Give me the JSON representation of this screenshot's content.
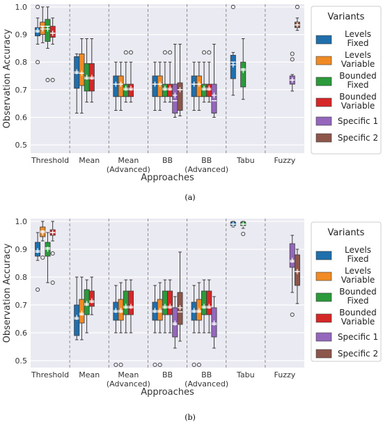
{
  "figure": {
    "panels": [
      {
        "caption": "(a)",
        "chart_data": {
          "type": "box",
          "xlabel": "Approaches",
          "ylabel": "Observation Accuracy",
          "ylim": [
            0.47,
            1.01
          ],
          "yticks": [
            0.5,
            0.6,
            0.7,
            0.8,
            0.9,
            1.0
          ],
          "categories": [
            "Threshold",
            "Mean",
            "Mean\n(Advanced)",
            "BB",
            "BB\n(Advanced)",
            "Tabu",
            "Fuzzy"
          ],
          "grid": true,
          "legend_position": "right",
          "legend_title": "Variants",
          "series": [
            {
              "name": "Levels\nFixed",
              "color": "#1f6fad"
            },
            {
              "name": "Levels\nVariable",
              "color": "#f08a24"
            },
            {
              "name": "Bounded\nFixed",
              "color": "#2a9a3a"
            },
            {
              "name": "Bounded\nVariable",
              "color": "#d62728"
            },
            {
              "name": "Specific 1",
              "color": "#9467bd"
            },
            {
              "name": "Specific 2",
              "color": "#8c564b"
            }
          ],
          "boxes": [
            {
              "cat": 0,
              "s": 0,
              "q1": 0.895,
              "med": 0.91,
              "q3": 0.925,
              "lo": 0.865,
              "hi": 0.96,
              "mean": 0.915,
              "out": [
                1.0,
                0.8
              ]
            },
            {
              "cat": 0,
              "s": 1,
              "q1": 0.9,
              "med": 0.93,
              "q3": 0.945,
              "lo": 0.87,
              "hi": 1.0,
              "mean": 0.92,
              "out": []
            },
            {
              "cat": 0,
              "s": 2,
              "q1": 0.875,
              "med": 0.93,
              "q3": 0.955,
              "lo": 0.85,
              "hi": 1.0,
              "mean": 0.92,
              "out": [
                0.735
              ]
            },
            {
              "cat": 0,
              "s": 3,
              "q1": 0.89,
              "med": 0.905,
              "q3": 0.93,
              "lo": 0.865,
              "hi": 0.96,
              "mean": 0.905,
              "out": [
                0.735
              ]
            },
            {
              "cat": 1,
              "s": 0,
              "q1": 0.705,
              "med": 0.76,
              "q3": 0.82,
              "lo": 0.615,
              "hi": 0.83,
              "mean": 0.765,
              "out": []
            },
            {
              "cat": 1,
              "s": 1,
              "q1": 0.715,
              "med": 0.76,
              "q3": 0.83,
              "lo": 0.615,
              "hi": 0.885,
              "mean": 0.76,
              "out": []
            },
            {
              "cat": 1,
              "s": 2,
              "q1": 0.695,
              "med": 0.74,
              "q3": 0.795,
              "lo": 0.655,
              "hi": 0.885,
              "mean": 0.745,
              "out": []
            },
            {
              "cat": 1,
              "s": 3,
              "q1": 0.695,
              "med": 0.74,
              "q3": 0.795,
              "lo": 0.655,
              "hi": 0.885,
              "mean": 0.745,
              "out": []
            },
            {
              "cat": 2,
              "s": 0,
              "q1": 0.675,
              "med": 0.72,
              "q3": 0.75,
              "lo": 0.625,
              "hi": 0.8,
              "mean": 0.72,
              "out": []
            },
            {
              "cat": 2,
              "s": 1,
              "q1": 0.675,
              "med": 0.72,
              "q3": 0.75,
              "lo": 0.625,
              "hi": 0.8,
              "mean": 0.72,
              "out": []
            },
            {
              "cat": 2,
              "s": 2,
              "q1": 0.675,
              "med": 0.7,
              "q3": 0.72,
              "lo": 0.655,
              "hi": 0.8,
              "mean": 0.705,
              "out": [
                0.835
              ]
            },
            {
              "cat": 2,
              "s": 3,
              "q1": 0.675,
              "med": 0.7,
              "q3": 0.72,
              "lo": 0.655,
              "hi": 0.8,
              "mean": 0.705,
              "out": [
                0.835
              ]
            },
            {
              "cat": 3,
              "s": 0,
              "q1": 0.675,
              "med": 0.72,
              "q3": 0.75,
              "lo": 0.625,
              "hi": 0.8,
              "mean": 0.72,
              "out": []
            },
            {
              "cat": 3,
              "s": 1,
              "q1": 0.675,
              "med": 0.72,
              "q3": 0.75,
              "lo": 0.625,
              "hi": 0.8,
              "mean": 0.72,
              "out": []
            },
            {
              "cat": 3,
              "s": 2,
              "q1": 0.675,
              "med": 0.7,
              "q3": 0.72,
              "lo": 0.655,
              "hi": 0.8,
              "mean": 0.705,
              "out": [
                0.835
              ]
            },
            {
              "cat": 3,
              "s": 3,
              "q1": 0.675,
              "med": 0.7,
              "q3": 0.72,
              "lo": 0.655,
              "hi": 0.8,
              "mean": 0.705,
              "out": [
                0.835
              ]
            },
            {
              "cat": 3,
              "s": 4,
              "q1": 0.615,
              "med": 0.66,
              "q3": 0.72,
              "lo": 0.6,
              "hi": 0.865,
              "mean": 0.68,
              "out": []
            },
            {
              "cat": 3,
              "s": 5,
              "q1": 0.625,
              "med": 0.7,
              "q3": 0.725,
              "lo": 0.605,
              "hi": 0.865,
              "mean": 0.7,
              "out": []
            },
            {
              "cat": 4,
              "s": 0,
              "q1": 0.675,
              "med": 0.72,
              "q3": 0.75,
              "lo": 0.625,
              "hi": 0.8,
              "mean": 0.72,
              "out": []
            },
            {
              "cat": 4,
              "s": 1,
              "q1": 0.675,
              "med": 0.72,
              "q3": 0.75,
              "lo": 0.625,
              "hi": 0.8,
              "mean": 0.72,
              "out": []
            },
            {
              "cat": 4,
              "s": 2,
              "q1": 0.675,
              "med": 0.7,
              "q3": 0.72,
              "lo": 0.655,
              "hi": 0.8,
              "mean": 0.705,
              "out": [
                0.835
              ]
            },
            {
              "cat": 4,
              "s": 3,
              "q1": 0.675,
              "med": 0.7,
              "q3": 0.72,
              "lo": 0.655,
              "hi": 0.8,
              "mean": 0.705,
              "out": [
                0.835
              ]
            },
            {
              "cat": 4,
              "s": 4,
              "q1": 0.615,
              "med": 0.66,
              "q3": 0.72,
              "lo": 0.6,
              "hi": 0.865,
              "mean": 0.68,
              "out": []
            },
            {
              "cat": 5,
              "s": 0,
              "q1": 0.74,
              "med": 0.8,
              "q3": 0.825,
              "lo": 0.68,
              "hi": 0.835,
              "mean": 0.79,
              "out": [
                1.0
              ]
            },
            {
              "cat": 5,
              "s": 2,
              "q1": 0.71,
              "med": 0.775,
              "q3": 0.8,
              "lo": 0.665,
              "hi": 0.885,
              "mean": 0.77,
              "out": []
            },
            {
              "cat": 6,
              "s": 4,
              "q1": 0.72,
              "med": 0.735,
              "q3": 0.75,
              "lo": 0.695,
              "hi": 0.755,
              "mean": 0.735,
              "out": [
                0.83,
                0.81
              ]
            },
            {
              "cat": 6,
              "s": 5,
              "q1": 0.925,
              "med": 0.935,
              "q3": 0.945,
              "lo": 0.915,
              "hi": 0.96,
              "mean": 0.935,
              "out": [
                1.0
              ]
            }
          ]
        }
      },
      {
        "caption": "(b)",
        "chart_data": {
          "type": "box",
          "xlabel": "Approaches",
          "ylabel": "Observation Accuracy",
          "ylim": [
            0.475,
            1.01
          ],
          "yticks": [
            0.5,
            0.6,
            0.7,
            0.8,
            0.9,
            1.0
          ],
          "categories": [
            "Threshold",
            "Mean",
            "Mean\n(Advanced)",
            "BB",
            "BB\n(Advanced)",
            "Tabu",
            "Fuzzy"
          ],
          "grid": true,
          "legend_position": "right",
          "legend_title": "Variants",
          "series": [
            {
              "name": "Levels\nFixed",
              "color": "#1f6fad"
            },
            {
              "name": "Levels\nVariable",
              "color": "#f08a24"
            },
            {
              "name": "Bounded\nFixed",
              "color": "#2a9a3a"
            },
            {
              "name": "Bounded\nVariable",
              "color": "#d62728"
            },
            {
              "name": "Specific 1",
              "color": "#9467bd"
            },
            {
              "name": "Specific 2",
              "color": "#8c564b"
            }
          ],
          "boxes": [
            {
              "cat": 0,
              "s": 0,
              "q1": 0.875,
              "med": 0.89,
              "q3": 0.925,
              "lo": 0.86,
              "hi": 0.96,
              "mean": 0.895,
              "out": [
                0.755
              ]
            },
            {
              "cat": 0,
              "s": 1,
              "q1": 0.945,
              "med": 0.965,
              "q3": 0.98,
              "lo": 0.93,
              "hi": 1.0,
              "mean": 0.96,
              "out": [
                0.87
              ]
            },
            {
              "cat": 0,
              "s": 2,
              "q1": 0.875,
              "med": 0.905,
              "q3": 0.925,
              "lo": 0.78,
              "hi": 0.96,
              "mean": 0.9,
              "out": []
            },
            {
              "cat": 0,
              "s": 3,
              "q1": 0.95,
              "med": 0.96,
              "q3": 0.97,
              "lo": 0.93,
              "hi": 1.0,
              "mean": 0.96,
              "out": [
                0.885,
                0.78
              ]
            },
            {
              "cat": 1,
              "s": 0,
              "q1": 0.59,
              "med": 0.65,
              "q3": 0.7,
              "lo": 0.575,
              "hi": 0.8,
              "mean": 0.655,
              "out": []
            },
            {
              "cat": 1,
              "s": 1,
              "q1": 0.635,
              "med": 0.665,
              "q3": 0.72,
              "lo": 0.575,
              "hi": 0.8,
              "mean": 0.67,
              "out": []
            },
            {
              "cat": 1,
              "s": 2,
              "q1": 0.665,
              "med": 0.7,
              "q3": 0.755,
              "lo": 0.6,
              "hi": 0.79,
              "mean": 0.705,
              "out": []
            },
            {
              "cat": 1,
              "s": 3,
              "q1": 0.695,
              "med": 0.71,
              "q3": 0.75,
              "lo": 0.665,
              "hi": 0.8,
              "mean": 0.715,
              "out": []
            },
            {
              "cat": 2,
              "s": 0,
              "q1": 0.645,
              "med": 0.675,
              "q3": 0.71,
              "lo": 0.6,
              "hi": 0.77,
              "mean": 0.68,
              "out": [
                0.485
              ]
            },
            {
              "cat": 2,
              "s": 1,
              "q1": 0.645,
              "med": 0.675,
              "q3": 0.72,
              "lo": 0.6,
              "hi": 0.78,
              "mean": 0.68,
              "out": [
                0.485
              ]
            },
            {
              "cat": 2,
              "s": 2,
              "q1": 0.665,
              "med": 0.69,
              "q3": 0.75,
              "lo": 0.6,
              "hi": 0.79,
              "mean": 0.695,
              "out": []
            },
            {
              "cat": 2,
              "s": 3,
              "q1": 0.665,
              "med": 0.69,
              "q3": 0.75,
              "lo": 0.6,
              "hi": 0.79,
              "mean": 0.695,
              "out": []
            },
            {
              "cat": 3,
              "s": 0,
              "q1": 0.645,
              "med": 0.675,
              "q3": 0.71,
              "lo": 0.6,
              "hi": 0.77,
              "mean": 0.68,
              "out": [
                0.485
              ]
            },
            {
              "cat": 3,
              "s": 1,
              "q1": 0.645,
              "med": 0.675,
              "q3": 0.72,
              "lo": 0.6,
              "hi": 0.78,
              "mean": 0.68,
              "out": [
                0.485
              ]
            },
            {
              "cat": 3,
              "s": 2,
              "q1": 0.665,
              "med": 0.69,
              "q3": 0.75,
              "lo": 0.6,
              "hi": 0.79,
              "mean": 0.695,
              "out": []
            },
            {
              "cat": 3,
              "s": 3,
              "q1": 0.665,
              "med": 0.69,
              "q3": 0.75,
              "lo": 0.6,
              "hi": 0.79,
              "mean": 0.695,
              "out": []
            },
            {
              "cat": 3,
              "s": 4,
              "q1": 0.585,
              "med": 0.63,
              "q3": 0.69,
              "lo": 0.545,
              "hi": 0.73,
              "mean": 0.635,
              "out": []
            },
            {
              "cat": 3,
              "s": 5,
              "q1": 0.63,
              "med": 0.675,
              "q3": 0.745,
              "lo": 0.57,
              "hi": 0.89,
              "mean": 0.69,
              "out": []
            },
            {
              "cat": 4,
              "s": 0,
              "q1": 0.645,
              "med": 0.675,
              "q3": 0.71,
              "lo": 0.6,
              "hi": 0.77,
              "mean": 0.68,
              "out": [
                0.485
              ]
            },
            {
              "cat": 4,
              "s": 1,
              "q1": 0.645,
              "med": 0.675,
              "q3": 0.72,
              "lo": 0.6,
              "hi": 0.78,
              "mean": 0.68,
              "out": [
                0.485
              ]
            },
            {
              "cat": 4,
              "s": 2,
              "q1": 0.665,
              "med": 0.69,
              "q3": 0.75,
              "lo": 0.6,
              "hi": 0.79,
              "mean": 0.695,
              "out": []
            },
            {
              "cat": 4,
              "s": 3,
              "q1": 0.665,
              "med": 0.69,
              "q3": 0.75,
              "lo": 0.6,
              "hi": 0.79,
              "mean": 0.695,
              "out": []
            },
            {
              "cat": 4,
              "s": 4,
              "q1": 0.585,
              "med": 0.63,
              "q3": 0.69,
              "lo": 0.545,
              "hi": 0.73,
              "mean": 0.635,
              "out": []
            },
            {
              "cat": 5,
              "s": 0,
              "q1": 0.985,
              "med": 0.99,
              "q3": 0.998,
              "lo": 0.98,
              "hi": 1.0,
              "mean": 0.99,
              "out": []
            },
            {
              "cat": 5,
              "s": 2,
              "q1": 0.985,
              "med": 0.99,
              "q3": 0.998,
              "lo": 0.975,
              "hi": 1.0,
              "mean": 0.99,
              "out": [
                0.955
              ]
            },
            {
              "cat": 6,
              "s": 4,
              "q1": 0.835,
              "med": 0.855,
              "q3": 0.92,
              "lo": 0.745,
              "hi": 0.95,
              "mean": 0.86,
              "out": [
                0.665
              ]
            },
            {
              "cat": 6,
              "s": 5,
              "q1": 0.77,
              "med": 0.82,
              "q3": 0.88,
              "lo": 0.705,
              "hi": 0.9,
              "mean": 0.82,
              "out": []
            }
          ]
        }
      }
    ]
  }
}
